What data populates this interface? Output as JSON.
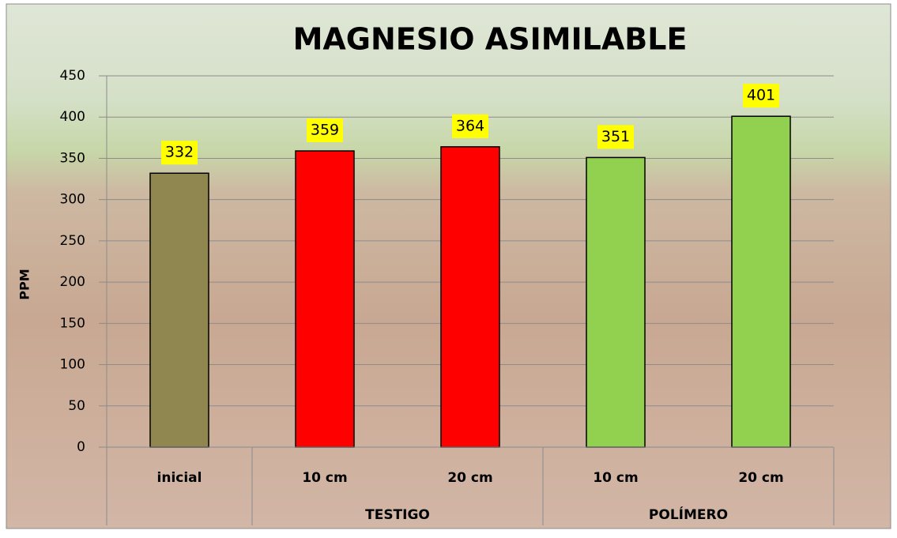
{
  "chart_data": {
    "type": "bar",
    "title": "MAGNESIO ASIMILABLE",
    "y_label": "PPM",
    "groups": [
      {
        "name": null,
        "categories": [
          "inicial"
        ],
        "values": [
          332
        ],
        "colors": [
          "#8f8650"
        ]
      },
      {
        "name": "TESTIGO",
        "categories": [
          "10 cm",
          "20 cm"
        ],
        "values": [
          359,
          364
        ],
        "colors": [
          "#ff0000",
          "#ff0000"
        ]
      },
      {
        "name": "POLÍMERO",
        "categories": [
          "10 cm",
          "20 cm"
        ],
        "values": [
          351,
          401
        ],
        "colors": [
          "#92d050",
          "#92d050"
        ]
      }
    ],
    "ylim": [
      0,
      450
    ],
    "yticks": [
      0,
      50,
      100,
      150,
      200,
      250,
      300,
      350,
      400,
      450
    ],
    "grid": true,
    "value_label_background": "#ffff00"
  }
}
